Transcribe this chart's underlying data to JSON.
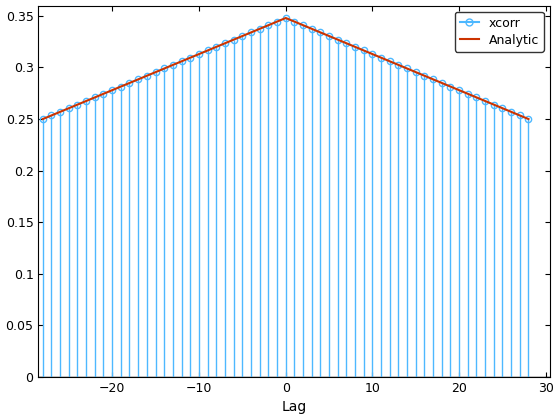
{
  "lag_min": -28,
  "lag_max": 28,
  "baseline": 0.0,
  "ylim": [
    0,
    0.36
  ],
  "yticks": [
    0,
    0.05,
    0.1,
    0.15,
    0.2,
    0.25,
    0.3,
    0.35
  ],
  "ytick_labels": [
    "0",
    "0.05",
    "0.1",
    "0.15",
    "0.2",
    "0.25",
    "0.3",
    "0.35"
  ],
  "xlabel": "Lag",
  "stem_color": "#4DB8FF",
  "analytic_color": "#CC3300",
  "marker_color": "#4DB8FF",
  "background_color": "#ffffff",
  "legend_labels": [
    "xcorr",
    "Analytic"
  ],
  "peak": 0.348,
  "floor": 0.25,
  "decay": 0.03,
  "N": 28
}
